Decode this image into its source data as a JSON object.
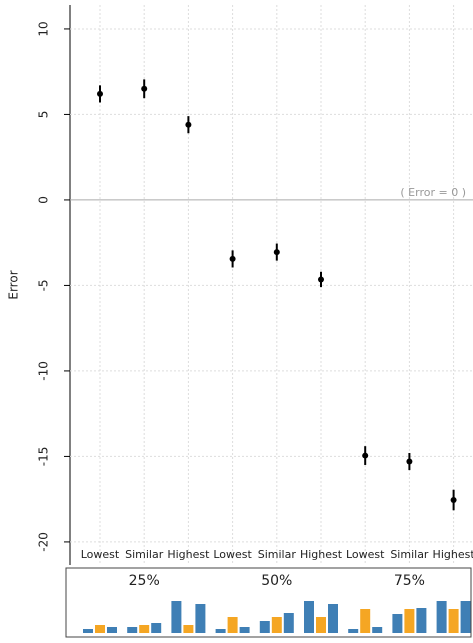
{
  "chart_data": {
    "type": "errorbar",
    "y_label": "Error",
    "annotation": "( Error = 0 )",
    "categories": [
      "Lowest",
      "Similar",
      "Highest",
      "Lowest",
      "Similar",
      "Highest",
      "Lowest",
      "Similar",
      "Highest"
    ],
    "groups": [
      "25%",
      "50%",
      "75%"
    ],
    "values": [
      6.2,
      6.5,
      4.4,
      -3.45,
      -3.05,
      -4.65,
      -14.95,
      -15.3,
      -17.55
    ],
    "errors": [
      0.5,
      0.55,
      0.5,
      0.5,
      0.5,
      0.45,
      0.55,
      0.5,
      0.6
    ],
    "color": "#000000",
    "ylim": [
      -21.35,
      11.4
    ],
    "yticks": [
      -20,
      -15,
      -10,
      -5,
      0,
      5,
      10
    ],
    "grid": true,
    "thumbnail_colors": [
      "#3f7fb5",
      "#f5a623",
      "#3f7fb5"
    ],
    "thumbnails": [
      [
        4,
        8,
        6
      ],
      [
        6,
        8,
        10
      ],
      [
        32,
        8,
        29
      ],
      [
        4,
        16,
        6
      ],
      [
        12,
        16,
        20
      ],
      [
        32,
        16,
        29
      ],
      [
        4,
        24,
        6
      ],
      [
        19,
        24,
        25
      ],
      [
        32,
        24,
        32
      ]
    ]
  }
}
